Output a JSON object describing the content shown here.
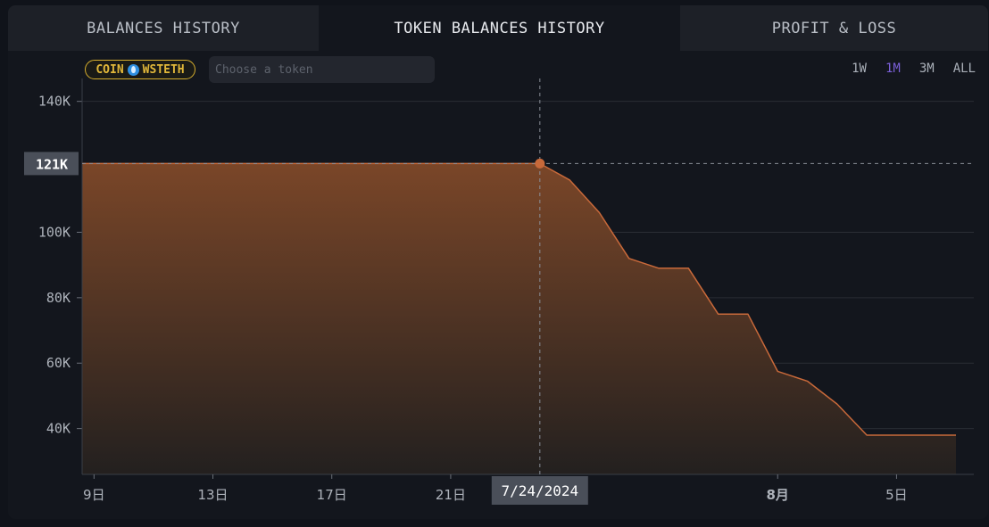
{
  "tabs": [
    {
      "label": "BALANCES HISTORY"
    },
    {
      "label": "TOKEN BALANCES HISTORY"
    },
    {
      "label": "PROFIT & LOSS"
    }
  ],
  "filter": {
    "badge_label": "COIN",
    "badge_token": "WSTETH",
    "token_placeholder": "Choose a token"
  },
  "ranges": [
    {
      "label": "1W",
      "active": false
    },
    {
      "label": "1M",
      "active": true
    },
    {
      "label": "3M",
      "active": false
    },
    {
      "label": "ALL",
      "active": false
    }
  ],
  "colors": {
    "line": "#c8693a",
    "area_top": "#7a4628",
    "area_bottom": "#23201f",
    "active_range": "#7a5fd6"
  },
  "tooltip": {
    "date": "7/24/2024",
    "value": "121K"
  },
  "chart_data": {
    "type": "area",
    "x_tick_labels": [
      "9日",
      "13日",
      "17日",
      "21日",
      "8月",
      "5日"
    ],
    "x_tick_positions_day": [
      0,
      4,
      8,
      12,
      23,
      27
    ],
    "y_ticks": [
      40000,
      60000,
      80000,
      100000,
      140000
    ],
    "y_tick_labels": [
      "40K",
      "60K",
      "80K",
      "100K",
      "140K"
    ],
    "ylim": [
      26000,
      147000
    ],
    "x_range_days": [
      -0.4,
      29.6
    ],
    "grid": true,
    "points": [
      {
        "day": -0.4,
        "value": 121000
      },
      {
        "day": 15,
        "value": 121000
      },
      {
        "day": 16,
        "value": 116000
      },
      {
        "day": 17,
        "value": 106000
      },
      {
        "day": 18,
        "value": 92000
      },
      {
        "day": 19,
        "value": 89000
      },
      {
        "day": 20,
        "value": 89000
      },
      {
        "day": 21,
        "value": 75000
      },
      {
        "day": 22,
        "value": 75000
      },
      {
        "day": 23,
        "value": 57500
      },
      {
        "day": 24,
        "value": 54500
      },
      {
        "day": 25,
        "value": 47500
      },
      {
        "day": 26,
        "value": 38000
      },
      {
        "day": 29,
        "value": 38000
      }
    ],
    "highlight": {
      "day": 15,
      "value": 121000
    }
  }
}
